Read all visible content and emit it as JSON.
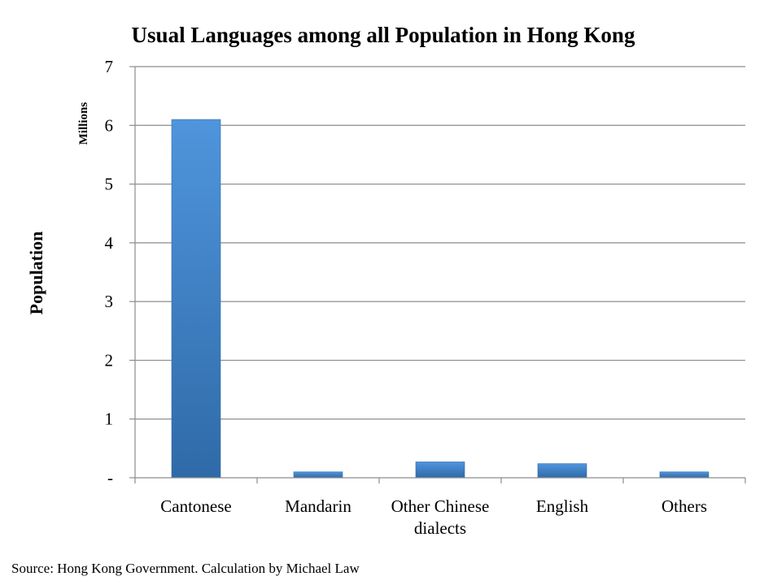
{
  "chart_data": {
    "type": "bar",
    "title": "Usual Languages among all Population in Hong Kong",
    "ylabel": "Population",
    "y_unit": "Millions",
    "xlabel": "",
    "categories": [
      "Cantonese",
      "Mandarin",
      "Other Chinese dialects",
      "English",
      "Others"
    ],
    "category_lines": [
      [
        "Cantonese"
      ],
      [
        "Mandarin"
      ],
      [
        "Other Chinese",
        "dialects"
      ],
      [
        "English"
      ],
      [
        "Others"
      ]
    ],
    "values": [
      6.1,
      0.1,
      0.27,
      0.24,
      0.1
    ],
    "ylim": [
      0,
      7
    ],
    "yticks": [
      0,
      1,
      2,
      3,
      4,
      5,
      6,
      7
    ],
    "ytick_labels": [
      "-",
      "1",
      "2",
      "3",
      "4",
      "5",
      "6",
      "7"
    ],
    "grid": true,
    "legend": "none",
    "bar_color": "#3d7fc6",
    "source": "Source: Hong Kong Government. Calculation by Michael Law"
  }
}
